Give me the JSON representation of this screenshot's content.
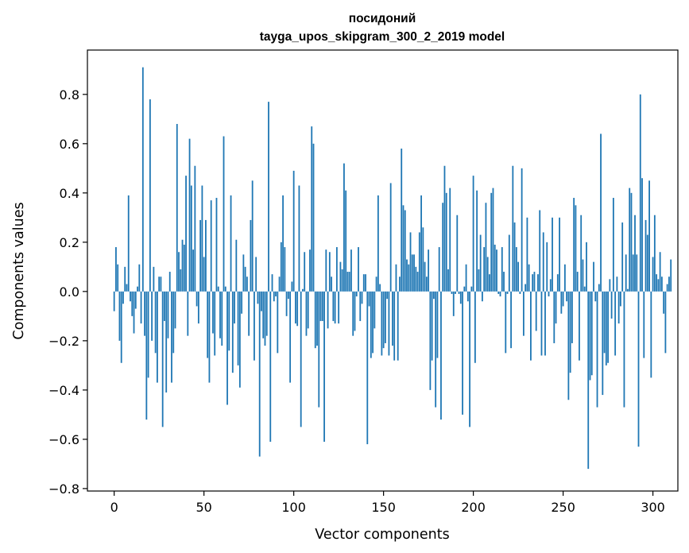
{
  "chart_data": {
    "type": "bar",
    "title": "посидоний",
    "subtitle": "tayga_upos_skipgram_300_2_2019 model",
    "xlabel": "Vector components",
    "ylabel": "Components values",
    "xlim": [
      -14.9,
      313.9
    ],
    "ylim": [
      -0.81,
      0.98
    ],
    "xticks": [
      0,
      50,
      100,
      150,
      200,
      250,
      300
    ],
    "yticks": [
      -0.8,
      -0.6,
      -0.4,
      -0.2,
      0.0,
      0.2,
      0.4,
      0.6,
      0.8
    ],
    "ytick_labels": [
      "−0.8",
      "−0.6",
      "−0.4",
      "−0.2",
      "0.0",
      "0.2",
      "0.4",
      "0.6",
      "0.8"
    ],
    "bar_color": "#1f77b4",
    "values": [
      -0.08,
      0.18,
      0.11,
      -0.2,
      -0.29,
      -0.05,
      0.1,
      0.03,
      0.39,
      -0.04,
      -0.1,
      -0.17,
      -0.07,
      0.02,
      0.11,
      -0.13,
      0.91,
      -0.18,
      -0.52,
      -0.35,
      0.78,
      -0.2,
      0.1,
      -0.25,
      -0.37,
      0.06,
      0.06,
      -0.55,
      -0.12,
      -0.41,
      -0.19,
      0.08,
      -0.37,
      -0.25,
      -0.15,
      0.68,
      0.16,
      0.09,
      0.21,
      0.19,
      0.47,
      -0.18,
      0.62,
      0.43,
      0.17,
      0.51,
      -0.06,
      -0.13,
      0.29,
      0.43,
      0.14,
      0.29,
      -0.27,
      -0.37,
      0.37,
      -0.17,
      -0.26,
      0.38,
      0.02,
      -0.19,
      -0.22,
      0.63,
      0.02,
      -0.46,
      -0.24,
      0.39,
      -0.33,
      -0.13,
      0.21,
      -0.3,
      -0.39,
      -0.09,
      0.15,
      0.1,
      0.06,
      -0.18,
      0.29,
      0.45,
      -0.28,
      0.14,
      -0.05,
      -0.67,
      -0.08,
      -0.19,
      -0.22,
      -0.18,
      0.77,
      -0.61,
      0.07,
      -0.04,
      -0.02,
      -0.25,
      0.06,
      0.2,
      0.39,
      0.18,
      -0.1,
      -0.03,
      -0.37,
      0.04,
      0.49,
      -0.13,
      -0.14,
      0.43,
      -0.55,
      0.01,
      0.16,
      -0.18,
      -0.15,
      0.17,
      0.67,
      0.6,
      -0.23,
      -0.22,
      -0.47,
      -0.12,
      -0.12,
      -0.61,
      0.17,
      -0.15,
      0.16,
      0.06,
      -0.12,
      -0.13,
      0.18,
      -0.13,
      0.12,
      0.09,
      0.52,
      0.41,
      0.08,
      0.08,
      0.17,
      -0.18,
      -0.16,
      -0.02,
      0.18,
      -0.12,
      -0.05,
      0.07,
      0.07,
      -0.62,
      -0.06,
      -0.27,
      -0.25,
      -0.15,
      0.06,
      0.39,
      0.03,
      -0.26,
      -0.23,
      -0.21,
      -0.03,
      -0.26,
      0.44,
      -0.22,
      -0.28,
      0.11,
      -0.28,
      0.06,
      0.58,
      0.35,
      0.33,
      0.13,
      0.11,
      0.24,
      0.15,
      0.15,
      0.1,
      0.08,
      0.24,
      0.39,
      0.26,
      0.12,
      0.06,
      0.17,
      -0.4,
      -0.28,
      -0.03,
      -0.47,
      -0.27,
      0.18,
      -0.52,
      0.36,
      0.51,
      0.4,
      0.09,
      0.42,
      -0.01,
      -0.1,
      -0.01,
      0.31,
      -0.01,
      -0.05,
      -0.5,
      0.02,
      0.11,
      -0.04,
      -0.55,
      0.02,
      0.47,
      -0.29,
      0.41,
      0.09,
      0.23,
      -0.04,
      0.18,
      0.36,
      0.14,
      0.07,
      0.4,
      0.42,
      0.19,
      0.17,
      -0.01,
      -0.02,
      0.18,
      0.08,
      -0.25,
      -0.01,
      0.23,
      -0.23,
      0.51,
      0.28,
      0.18,
      0.12,
      -0.01,
      0.5,
      -0.18,
      0.03,
      0.3,
      0.11,
      -0.28,
      0.07,
      0.08,
      -0.16,
      0.07,
      0.33,
      -0.26,
      0.24,
      -0.26,
      0.2,
      -0.02,
      0.05,
      0.3,
      -0.21,
      -0.13,
      0.07,
      0.3,
      -0.09,
      -0.06,
      0.11,
      -0.04,
      -0.44,
      -0.33,
      -0.21,
      0.38,
      0.35,
      0.08,
      -0.28,
      0.31,
      0.13,
      0.02,
      0.2,
      -0.72,
      -0.36,
      -0.34,
      0.12,
      -0.04,
      -0.47,
      0.03,
      0.64,
      -0.42,
      -0.25,
      -0.3,
      -0.29,
      0.05,
      -0.11,
      0.38,
      -0.26,
      0.06,
      -0.13,
      -0.06,
      0.28,
      -0.47,
      0.15,
      0.01,
      0.42,
      0.4,
      0.15,
      0.31,
      0.15,
      -0.63,
      0.8,
      0.46,
      -0.27,
      0.29,
      0.23,
      0.45,
      -0.35,
      0.14,
      0.31,
      0.07,
      0.05,
      0.16,
      0.06,
      -0.09,
      -0.25,
      0.03,
      0.06,
      0.13
    ]
  }
}
